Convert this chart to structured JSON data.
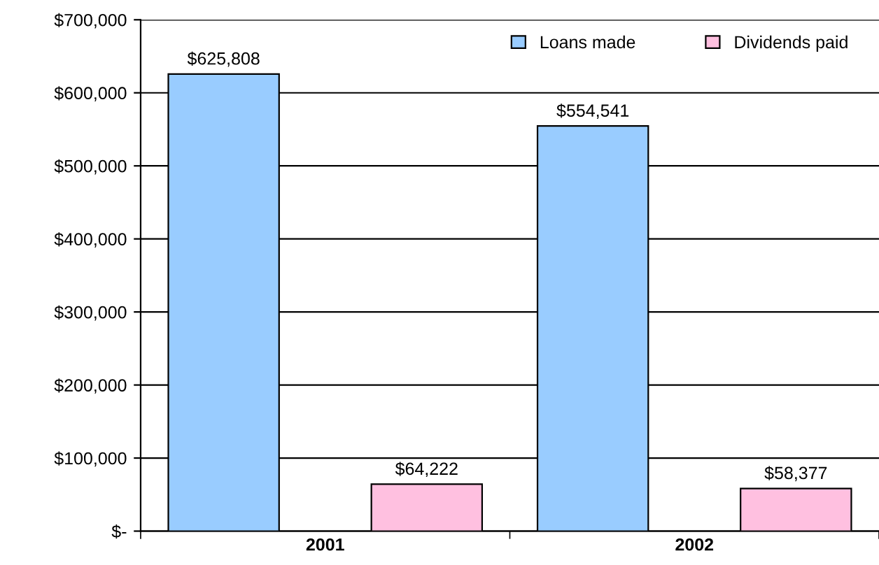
{
  "chart_data": {
    "type": "bar",
    "categories": [
      "2001",
      "2002"
    ],
    "series": [
      {
        "name": "Loans made",
        "color": "#99ccff",
        "values": [
          625808,
          554541
        ],
        "value_labels": [
          "$625,808",
          "$554,541"
        ]
      },
      {
        "name": "Dividends paid",
        "color": "#ffc0e0",
        "values": [
          64222,
          58377
        ],
        "value_labels": [
          "$64,222",
          "$58,377"
        ]
      }
    ],
    "ylim": [
      0,
      700000
    ],
    "yticks": [
      {
        "value": 0,
        "label": "$-"
      },
      {
        "value": 100000,
        "label": "$100,000"
      },
      {
        "value": 200000,
        "label": "$200,000"
      },
      {
        "value": 300000,
        "label": "$300,000"
      },
      {
        "value": 400000,
        "label": "$400,000"
      },
      {
        "value": 500000,
        "label": "$500,000"
      },
      {
        "value": 600000,
        "label": "$600,000"
      },
      {
        "value": 700000,
        "label": "$700,000"
      }
    ],
    "grid": "y",
    "legend": "top right"
  }
}
